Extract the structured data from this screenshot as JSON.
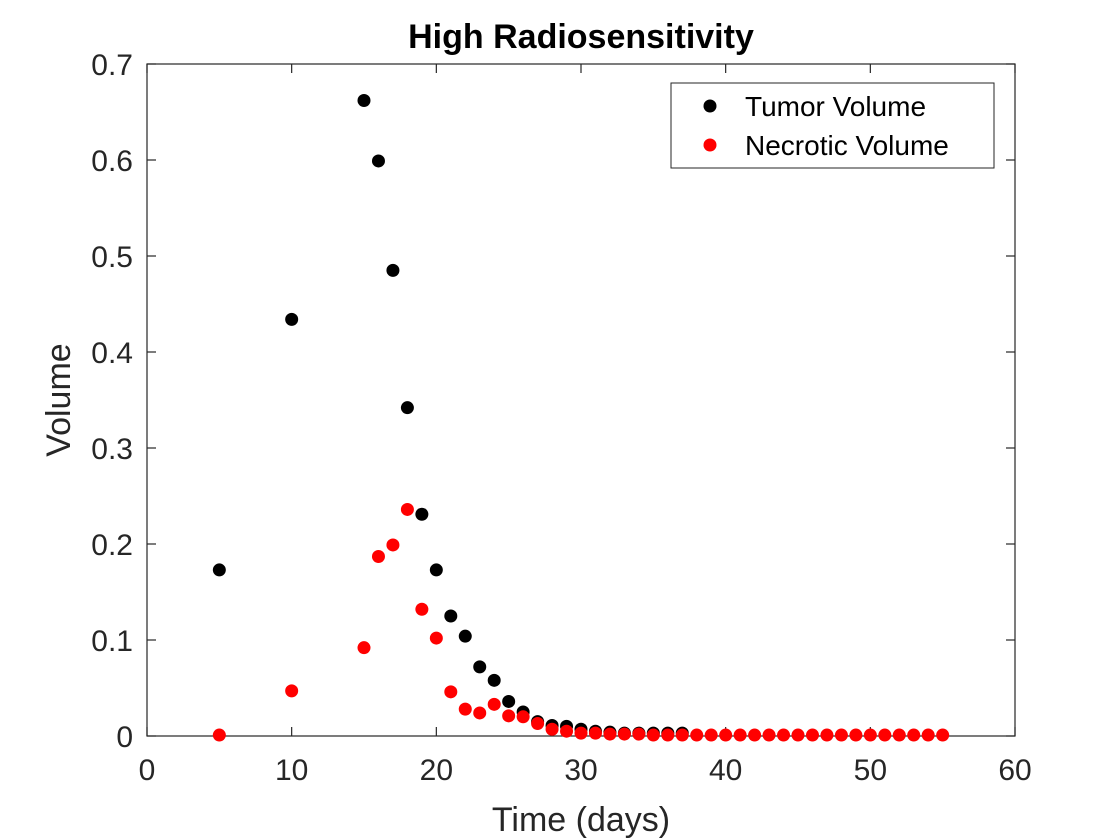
{
  "chart_data": {
    "type": "scatter",
    "title": "High Radiosensitivity",
    "xlabel": "Time (days)",
    "ylabel": "Volume",
    "xlim": [
      0,
      60
    ],
    "ylim": [
      0,
      0.7
    ],
    "xticks": [
      0,
      10,
      20,
      30,
      40,
      50,
      60
    ],
    "yticks": [
      0,
      0.1,
      0.2,
      0.3,
      0.4,
      0.5,
      0.6,
      0.7
    ],
    "xtick_labels": [
      "0",
      "10",
      "20",
      "30",
      "40",
      "50",
      "60"
    ],
    "ytick_labels": [
      "0",
      "0.1",
      "0.2",
      "0.3",
      "0.4",
      "0.5",
      "0.6",
      "0.7"
    ],
    "grid": false,
    "legend_position": "top-right",
    "series": [
      {
        "name": "Tumor Volume",
        "color": "#000000",
        "x": [
          5,
          10,
          15,
          16,
          17,
          18,
          19,
          20,
          21,
          22,
          23,
          24,
          25,
          26,
          27,
          28,
          29,
          30,
          31,
          32,
          33,
          34,
          35,
          36,
          37
        ],
        "y": [
          0.173,
          0.434,
          0.662,
          0.599,
          0.485,
          0.342,
          0.231,
          0.173,
          0.125,
          0.104,
          0.072,
          0.058,
          0.036,
          0.025,
          0.015,
          0.011,
          0.01,
          0.007,
          0.005,
          0.004,
          0.003,
          0.003,
          0.003,
          0.003,
          0.003
        ]
      },
      {
        "name": "Necrotic Volume",
        "color": "#ff0000",
        "x": [
          5,
          10,
          15,
          16,
          17,
          18,
          19,
          20,
          21,
          22,
          23,
          24,
          25,
          26,
          27,
          28,
          29,
          30,
          31,
          32,
          33,
          34,
          35,
          36,
          37,
          38,
          39,
          40,
          41,
          42,
          43,
          44,
          45,
          46,
          47,
          48,
          49,
          50,
          51,
          52,
          53,
          54,
          55
        ],
        "y": [
          0.001,
          0.047,
          0.092,
          0.187,
          0.199,
          0.236,
          0.132,
          0.102,
          0.046,
          0.028,
          0.024,
          0.033,
          0.021,
          0.02,
          0.013,
          0.007,
          0.005,
          0.003,
          0.003,
          0.002,
          0.002,
          0.002,
          0.001,
          0.001,
          0.001,
          0.001,
          0.001,
          0.001,
          0.001,
          0.001,
          0.001,
          0.001,
          0.001,
          0.001,
          0.001,
          0.001,
          0.001,
          0.001,
          0.001,
          0.001,
          0.001,
          0.001,
          0.001
        ]
      }
    ]
  }
}
